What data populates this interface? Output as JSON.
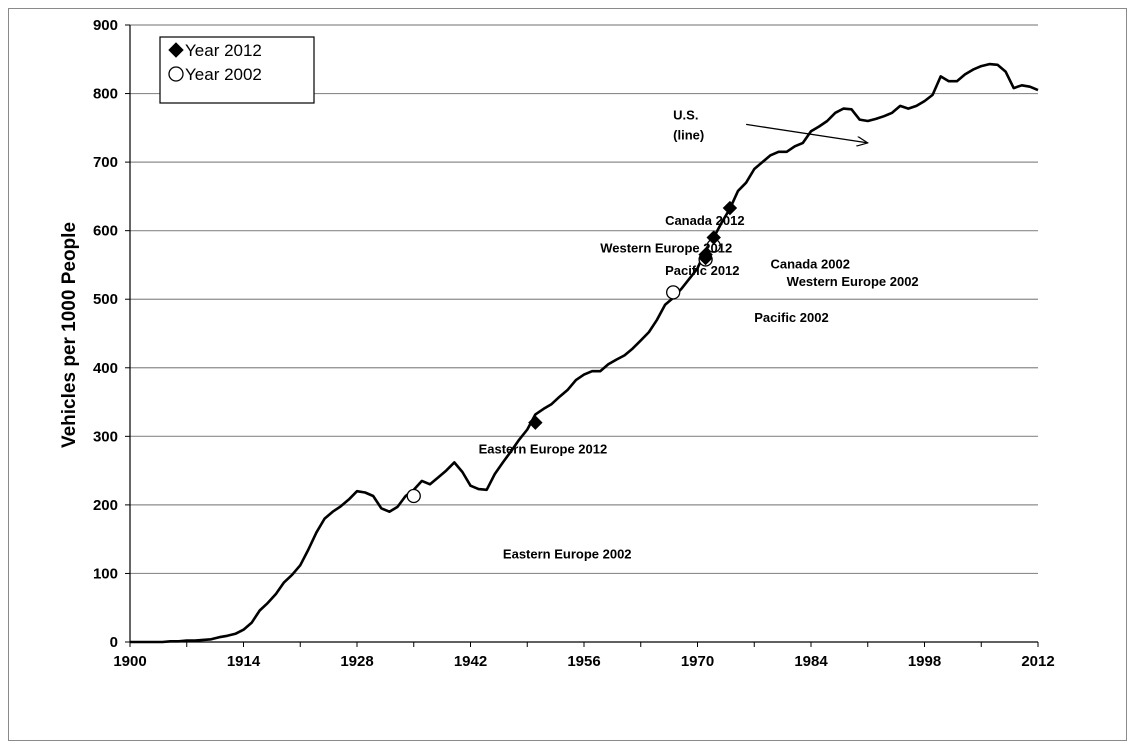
{
  "chart_data": {
    "type": "line",
    "ylabel": "Vehicles per 1000 People",
    "xlim": [
      1900,
      2012
    ],
    "ylim": [
      0,
      900
    ],
    "x_ticks": [
      "1900",
      "1914",
      "1928",
      "1942",
      "1956",
      "1970",
      "1984",
      "1998",
      "2012"
    ],
    "y_ticks": [
      "0",
      "100",
      "200",
      "300",
      "400",
      "500",
      "600",
      "700",
      "800",
      "900"
    ],
    "grid": "horizontal",
    "legend_position": "top-left",
    "legend": [
      {
        "label": "Year 2012",
        "marker": "filled-diamond"
      },
      {
        "label": "Year 2002",
        "marker": "open-circle"
      }
    ],
    "series": [
      {
        "name": "U.S.",
        "x": [
          1900,
          1901,
          1902,
          1903,
          1904,
          1905,
          1906,
          1907,
          1908,
          1909,
          1910,
          1911,
          1912,
          1913,
          1914,
          1915,
          1916,
          1917,
          1918,
          1919,
          1920,
          1921,
          1922,
          1923,
          1924,
          1925,
          1926,
          1927,
          1928,
          1929,
          1930,
          1931,
          1932,
          1933,
          1934,
          1935,
          1936,
          1937,
          1938,
          1939,
          1940,
          1941,
          1942,
          1943,
          1944,
          1945,
          1946,
          1947,
          1948,
          1949,
          1950,
          1951,
          1952,
          1953,
          1954,
          1955,
          1956,
          1957,
          1958,
          1959,
          1960,
          1961,
          1962,
          1963,
          1964,
          1965,
          1966,
          1967,
          1968,
          1969,
          1970,
          1971,
          1972,
          1973,
          1974,
          1975,
          1976,
          1977,
          1978,
          1979,
          1980,
          1981,
          1982,
          1983,
          1984,
          1985,
          1986,
          1987,
          1988,
          1989,
          1990,
          1991,
          1992,
          1993,
          1994,
          1995,
          1996,
          1997,
          1998,
          1999,
          2000,
          2001,
          2002,
          2003,
          2004,
          2005,
          2006,
          2007,
          2008,
          2009,
          2010,
          2011,
          2012
        ],
        "y": [
          0,
          0,
          0,
          0,
          0,
          1,
          1,
          2,
          2,
          3,
          4,
          7,
          9,
          12,
          18,
          28,
          46,
          57,
          70,
          87,
          98,
          112,
          135,
          160,
          180,
          190,
          198,
          208,
          220,
          218,
          213,
          195,
          190,
          197,
          213,
          222,
          235,
          230,
          240,
          250,
          262,
          248,
          228,
          223,
          222,
          245,
          262,
          278,
          295,
          310,
          332,
          340,
          347,
          358,
          368,
          382,
          390,
          395,
          395,
          405,
          412,
          418,
          428,
          440,
          452,
          470,
          492,
          502,
          515,
          530,
          545,
          572,
          590,
          612,
          632,
          658,
          670,
          690,
          700,
          710,
          715,
          715,
          723,
          728,
          745,
          752,
          760,
          772,
          778,
          777,
          762,
          760,
          763,
          767,
          772,
          782,
          778,
          782,
          789,
          798,
          825,
          818,
          818,
          828,
          835,
          840,
          843,
          842,
          832,
          808,
          812,
          810,
          805
        ]
      }
    ],
    "points_2012": [
      {
        "label": "Eastern Europe 2012",
        "x": 1950,
        "y": 320
      },
      {
        "label": "Western Europe 2012",
        "x": 1971,
        "y": 565
      },
      {
        "label": "Pacific 2012",
        "x": 1971,
        "y": 560
      },
      {
        "label": "Canada 2012",
        "x": 1972,
        "y": 590
      },
      {
        "label": "",
        "x": 1974,
        "y": 633
      }
    ],
    "points_2002": [
      {
        "label": "Eastern Europe 2002",
        "x": 1935,
        "y": 213
      },
      {
        "label": "Pacific 2002",
        "x": 1967,
        "y": 510
      },
      {
        "label": "Western Europe 2002",
        "x": 1971,
        "y": 558
      },
      {
        "label": "Canada 2002",
        "x": 1972,
        "y": 578
      }
    ],
    "annotations": [
      {
        "text": "Canada 2012",
        "x": 1966,
        "y": 608
      },
      {
        "text": "Western Europe 2012",
        "x": 1958,
        "y": 568
      },
      {
        "text": "Pacific 2012",
        "x": 1966,
        "y": 535
      },
      {
        "text": "Canada 2002",
        "x": 1979,
        "y": 545
      },
      {
        "text": "Western Europe 2002",
        "x": 1981,
        "y": 519
      },
      {
        "text": "Pacific 2002",
        "x": 1977,
        "y": 467
      },
      {
        "text": "Eastern Europe 2012",
        "x": 1943,
        "y": 275
      },
      {
        "text": "Eastern Europe 2002",
        "x": 1946,
        "y": 122
      }
    ],
    "us_label": {
      "lines": [
        "U.S.",
        "(line)"
      ],
      "x": 1967,
      "y": 762,
      "arrow_from": [
        1976,
        755
      ],
      "arrow_to": [
        1991,
        728
      ]
    }
  }
}
